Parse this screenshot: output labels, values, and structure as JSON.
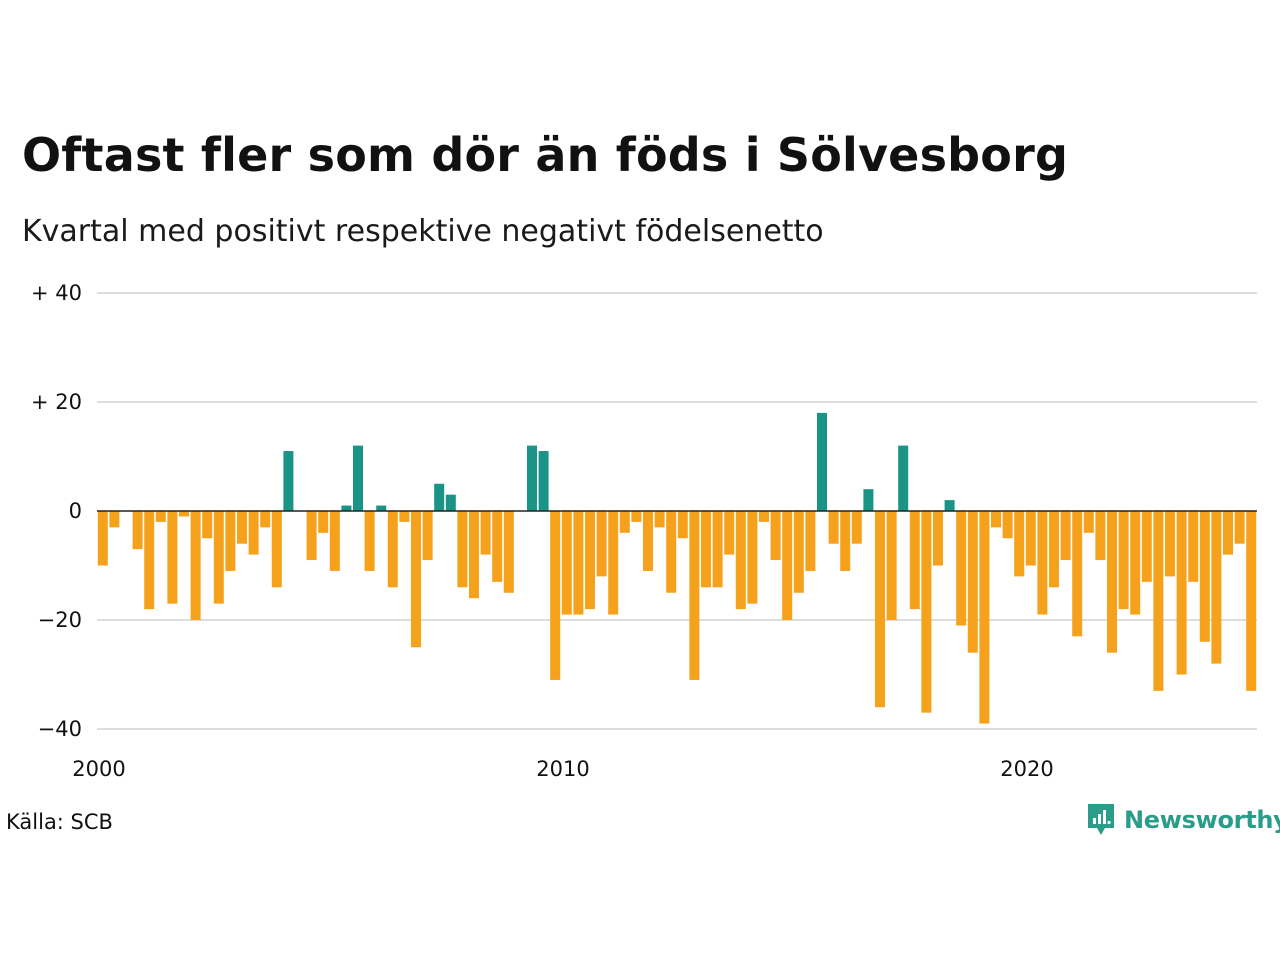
{
  "title": "Oftast fler som dör än föds i Sölvesborg",
  "subtitle": "Kvartal med positivt respektive negativt födelsenetto",
  "source": "Källa: SCB",
  "logo": {
    "text": "Newsworthy",
    "icon": "newsworthy-chart-icon",
    "color": "#2a9d8a"
  },
  "colors": {
    "positive": "#1a9486",
    "negative": "#f5a11b",
    "grid": "#dddddd",
    "zero_line": "#222222"
  },
  "chart_data": {
    "type": "bar",
    "title": "Oftast fler som dör än föds i Sölvesborg",
    "subtitle": "Kvartal med positivt respektive negativt födelsenetto",
    "xlabel": "",
    "ylabel": "",
    "ylim": [
      -40,
      40
    ],
    "xlim": [
      2000,
      2025
    ],
    "y_ticks": [
      40,
      20,
      0,
      -20,
      -40
    ],
    "y_tick_labels": [
      "+ 40",
      "+ 20",
      "0",
      "−20",
      "−40"
    ],
    "x_ticks": [
      2000,
      2010,
      2020
    ],
    "x_tick_labels": [
      "2000",
      "2010",
      "2020"
    ],
    "grid": true,
    "start_year": 2000,
    "frequency": "quarterly",
    "values": [
      -10,
      -3,
      0,
      -7,
      -18,
      -2,
      -17,
      -1,
      -20,
      -5,
      -17,
      -11,
      -6,
      -8,
      -3,
      -14,
      11,
      0,
      -9,
      -4,
      -11,
      1,
      12,
      -11,
      1,
      -14,
      -2,
      -25,
      -9,
      5,
      3,
      -14,
      -16,
      -8,
      -13,
      -15,
      0,
      12,
      11,
      -31,
      -19,
      -19,
      -18,
      -12,
      -19,
      -4,
      -2,
      -11,
      -3,
      -15,
      -5,
      -31,
      -14,
      -14,
      -8,
      -18,
      -17,
      -2,
      -9,
      -20,
      -15,
      -11,
      18,
      -6,
      -11,
      -6,
      4,
      -36,
      -20,
      12,
      -18,
      -37,
      -10,
      2,
      -21,
      -26,
      -39,
      -3,
      -5,
      -12,
      -10,
      -19,
      -14,
      -9,
      -23,
      -4,
      -9,
      -26,
      -18,
      -19,
      -13,
      -33,
      -12,
      -30,
      -13,
      -24,
      -28,
      -8,
      -6,
      -33
    ]
  }
}
